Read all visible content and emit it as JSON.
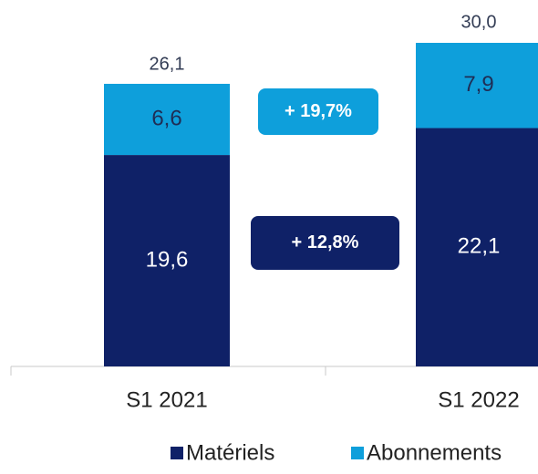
{
  "chart_data": {
    "type": "bar",
    "stacked": true,
    "categories": [
      "S1 2021",
      "S1 2022"
    ],
    "series": [
      {
        "name": "Matériels",
        "color": "#0f2167",
        "label_color": "#ffffff",
        "values": [
          19.6,
          22.1
        ],
        "value_labels": [
          "19,6",
          "22,1"
        ]
      },
      {
        "name": "Abonnements",
        "color": "#0e9fdb",
        "label_color": "#1f2d55",
        "values": [
          6.6,
          7.9
        ],
        "value_labels": [
          "6,6",
          "7,9"
        ]
      }
    ],
    "totals": [
      26.1,
      30.0
    ],
    "total_labels": [
      "26,1",
      "30,0"
    ],
    "annotations": [
      {
        "text": "+ 19,7%",
        "series": 1,
        "color": "#0e9fdb"
      },
      {
        "text": "+ 12,8%",
        "series": 0,
        "color": "#0f2167"
      }
    ],
    "legend": "bottom"
  }
}
